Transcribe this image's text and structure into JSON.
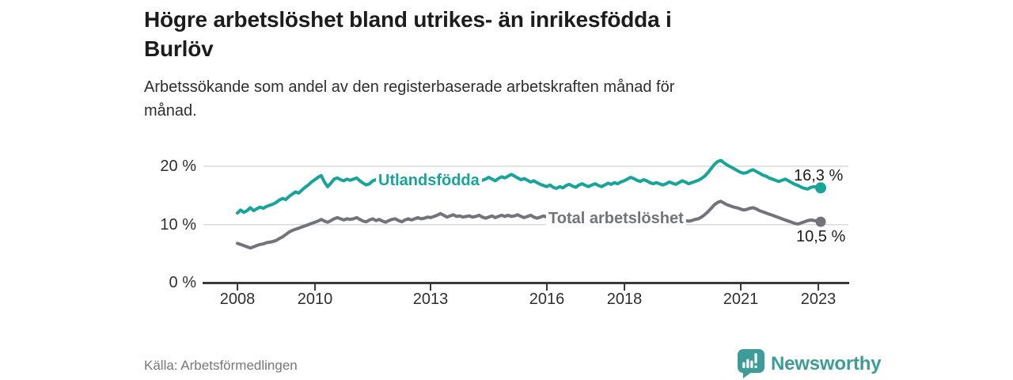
{
  "header": {
    "title": "Högre arbetslöshet bland utrikes- än inrikesfödda i Burlöv",
    "title_lines": [
      "Högre arbetslöshet bland utrikes- än inrikesfödda i",
      "Burlöv"
    ],
    "subtitle": "Arbetssökande som andel av den registerbaserade arbetskraften månad för månad.",
    "subtitle_lines": [
      "Arbetssökande som andel av den registerbaserade arbetskraften månad för",
      "månad."
    ]
  },
  "chart_data": {
    "type": "line",
    "frequency": "monthly",
    "x_start": "2008-01",
    "x_end": "2023-02",
    "ylabel": "",
    "xlabel": "",
    "ylim": [
      0,
      27
    ],
    "grid": "horizontal",
    "yticks": [
      20,
      10,
      0
    ],
    "ytick_labels": [
      "20 %",
      "10 %",
      "0 %"
    ],
    "xticks": [
      2008,
      2010,
      2013,
      2016,
      2018,
      2021,
      2023
    ],
    "xtick_labels": [
      "2008",
      "2010",
      "2013",
      "2016",
      "2018",
      "2021",
      "2023"
    ],
    "series": [
      {
        "id": "utlandsfodda",
        "name": "Utlandsfödda",
        "color": "#18a39b",
        "end_value": 16.3,
        "end_label": "16,3 %",
        "values": [
          12.0,
          12.5,
          12.1,
          12.4,
          12.9,
          12.4,
          12.7,
          13.0,
          12.8,
          13.1,
          13.3,
          13.5,
          13.8,
          14.2,
          14.5,
          14.3,
          14.8,
          15.2,
          15.6,
          15.4,
          15.9,
          16.4,
          16.8,
          17.3,
          17.7,
          18.1,
          18.4,
          17.3,
          16.5,
          17.1,
          17.8,
          18.0,
          17.7,
          17.5,
          17.8,
          17.6,
          17.8,
          18.0,
          17.5,
          17.1,
          16.8,
          17.0,
          17.5,
          17.7,
          17.4,
          17.6,
          17.8,
          17.6,
          17.7,
          17.9,
          17.6,
          17.4,
          17.6,
          17.8,
          17.5,
          17.7,
          17.9,
          17.6,
          17.8,
          17.7,
          17.8,
          18.0,
          17.7,
          17.9,
          18.1,
          17.8,
          17.6,
          17.9,
          18.1,
          17.8,
          18.0,
          17.9,
          17.7,
          18.0,
          18.2,
          17.9,
          17.6,
          17.8,
          18.1,
          17.8,
          17.5,
          17.9,
          18.2,
          18.0,
          18.3,
          18.6,
          18.3,
          18.0,
          17.7,
          17.9,
          17.6,
          17.3,
          17.5,
          17.2,
          16.9,
          16.7,
          16.5,
          16.8,
          16.4,
          16.2,
          16.5,
          16.3,
          16.7,
          16.9,
          16.6,
          16.4,
          16.8,
          17.0,
          16.7,
          16.5,
          16.8,
          17.0,
          16.7,
          16.5,
          16.8,
          17.1,
          16.9,
          17.2,
          17.0,
          17.3,
          17.5,
          17.8,
          18.1,
          17.9,
          17.6,
          17.4,
          17.7,
          17.5,
          17.2,
          17.0,
          17.2,
          17.0,
          16.8,
          17.0,
          17.3,
          17.1,
          16.9,
          17.2,
          17.5,
          17.3,
          17.0,
          17.2,
          17.4,
          17.6,
          17.9,
          18.3,
          18.9,
          19.6,
          20.3,
          20.8,
          21.0,
          20.6,
          20.2,
          19.9,
          19.6,
          19.3,
          19.0,
          18.8,
          18.9,
          19.2,
          19.4,
          19.1,
          18.8,
          18.5,
          18.3,
          18.0,
          17.8,
          17.6,
          17.4,
          17.6,
          17.8,
          17.5,
          17.2,
          16.9,
          16.7,
          16.4,
          16.2,
          16.1,
          16.4,
          16.5,
          16.4,
          16.3
        ]
      },
      {
        "id": "total",
        "name": "Total arbetslöshet",
        "color": "#73737b",
        "end_value": 10.5,
        "end_label": "10,5 %",
        "values": [
          6.8,
          6.6,
          6.4,
          6.2,
          6.0,
          6.2,
          6.4,
          6.6,
          6.7,
          6.9,
          7.0,
          7.1,
          7.3,
          7.6,
          7.9,
          8.3,
          8.7,
          9.0,
          9.2,
          9.4,
          9.6,
          9.8,
          10.0,
          10.2,
          10.4,
          10.6,
          10.9,
          10.6,
          10.4,
          10.7,
          11.0,
          11.2,
          11.0,
          10.8,
          11.0,
          10.9,
          11.0,
          11.2,
          10.9,
          10.6,
          10.5,
          10.8,
          11.0,
          10.7,
          10.9,
          10.6,
          10.4,
          10.7,
          10.9,
          11.0,
          10.7,
          10.5,
          10.8,
          11.0,
          10.8,
          11.0,
          11.2,
          11.0,
          11.1,
          11.3,
          11.2,
          11.4,
          11.6,
          11.9,
          11.6,
          11.3,
          11.5,
          11.7,
          11.4,
          11.5,
          11.3,
          11.4,
          11.5,
          11.3,
          11.4,
          11.6,
          11.3,
          11.1,
          11.3,
          11.5,
          11.2,
          11.4,
          11.6,
          11.4,
          11.6,
          11.4,
          11.5,
          11.7,
          11.4,
          11.2,
          11.4,
          11.6,
          11.3,
          11.1,
          11.3,
          11.5,
          11.3,
          11.1,
          11.2,
          11.0,
          10.8,
          11.0,
          11.2,
          11.0,
          10.8,
          10.9,
          11.1,
          10.9,
          10.7,
          10.8,
          11.0,
          10.8,
          10.6,
          10.7,
          10.9,
          10.7,
          10.5,
          10.6,
          10.8,
          10.6,
          10.5,
          10.6,
          10.8,
          10.6,
          10.4,
          10.5,
          10.7,
          10.5,
          10.4,
          10.5,
          10.6,
          10.5,
          10.4,
          10.5,
          10.7,
          10.6,
          10.5,
          10.6,
          10.8,
          10.7,
          10.6,
          10.7,
          10.9,
          11.0,
          11.3,
          11.7,
          12.2,
          12.8,
          13.4,
          13.8,
          14.0,
          13.7,
          13.4,
          13.2,
          13.0,
          12.9,
          12.7,
          12.5,
          12.6,
          12.8,
          12.9,
          12.7,
          12.4,
          12.2,
          12.0,
          11.8,
          11.6,
          11.4,
          11.2,
          11.0,
          10.8,
          10.6,
          10.4,
          10.2,
          10.1,
          10.3,
          10.5,
          10.7,
          10.8,
          10.7,
          10.6,
          10.5
        ]
      }
    ]
  },
  "footer": {
    "source": "Källa: Arbetsförmedlingen",
    "brand": "Newsworthy",
    "brand_color": "#3e9c98"
  }
}
